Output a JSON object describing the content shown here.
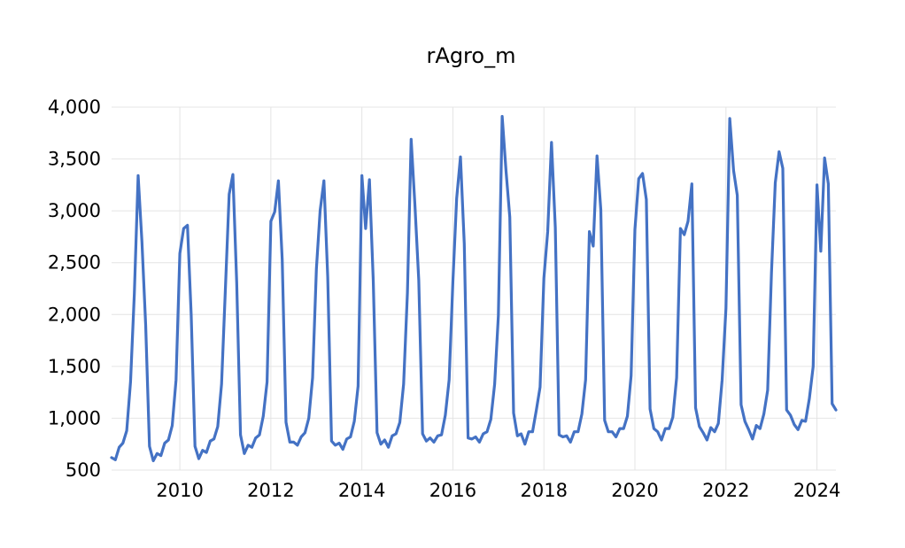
{
  "chart_data": {
    "type": "line",
    "title": "rAgro_m",
    "xlabel": "",
    "ylabel": "",
    "ylim": [
      500,
      4000
    ],
    "y_ticks": [
      500,
      1000,
      1500,
      2000,
      2500,
      3000,
      3500,
      4000
    ],
    "y_tick_labels": [
      "500",
      "1,000",
      "1,500",
      "2,000",
      "2,500",
      "3,000",
      "3,500",
      "4,000"
    ],
    "x_ticks": [
      2010,
      2012,
      2014,
      2016,
      2018,
      2020,
      2022,
      2024
    ],
    "x_tick_labels": [
      "2010",
      "2012",
      "2014",
      "2016",
      "2018",
      "2020",
      "2022",
      "2024"
    ],
    "grid": "vertical and horizontal",
    "legend": "none",
    "series_color": "#4472C4",
    "start": "2008-07",
    "frequency": "monthly",
    "series": [
      {
        "values": [
          620,
          600,
          720,
          760,
          880,
          1350,
          2200,
          3340,
          2700,
          1900,
          730,
          590,
          660,
          640,
          760,
          790,
          930,
          1370,
          2590,
          2830,
          2860,
          2000,
          730,
          610,
          690,
          670,
          780,
          800,
          920,
          1330,
          2240,
          3160,
          3350,
          2310,
          840,
          660,
          740,
          720,
          810,
          840,
          1020,
          1350,
          2900,
          2990,
          3290,
          2530,
          960,
          770,
          770,
          740,
          820,
          860,
          1000,
          1390,
          2440,
          3000,
          3290,
          2360,
          780,
          740,
          760,
          700,
          800,
          820,
          970,
          1310,
          3340,
          2830,
          3300,
          2330,
          860,
          750,
          790,
          720,
          830,
          850,
          960,
          1330,
          2210,
          3690,
          3050,
          2330,
          850,
          780,
          810,
          770,
          830,
          840,
          1030,
          1370,
          2310,
          3120,
          3520,
          2680,
          810,
          800,
          820,
          770,
          850,
          870,
          990,
          1330,
          1990,
          3910,
          3390,
          2940,
          1050,
          830,
          850,
          750,
          870,
          870,
          1080,
          1300,
          2350,
          2800,
          3660,
          2840,
          840,
          820,
          830,
          770,
          870,
          870,
          1040,
          1370,
          2800,
          2660,
          3530,
          3010,
          980,
          870,
          870,
          820,
          900,
          900,
          1020,
          1410,
          2820,
          3310,
          3360,
          3110,
          1090,
          900,
          870,
          790,
          900,
          900,
          1010,
          1390,
          2830,
          2770,
          2900,
          3260,
          1100,
          920,
          860,
          790,
          910,
          870,
          950,
          1370,
          2060,
          3890,
          3390,
          3150,
          1130,
          970,
          890,
          800,
          930,
          900,
          1040,
          1270,
          2400,
          3270,
          3570,
          3410,
          1080,
          1030,
          940,
          890,
          980,
          970,
          1190,
          1500,
          3250,
          2610,
          3510,
          3260,
          1140,
          1080
        ]
      }
    ]
  }
}
